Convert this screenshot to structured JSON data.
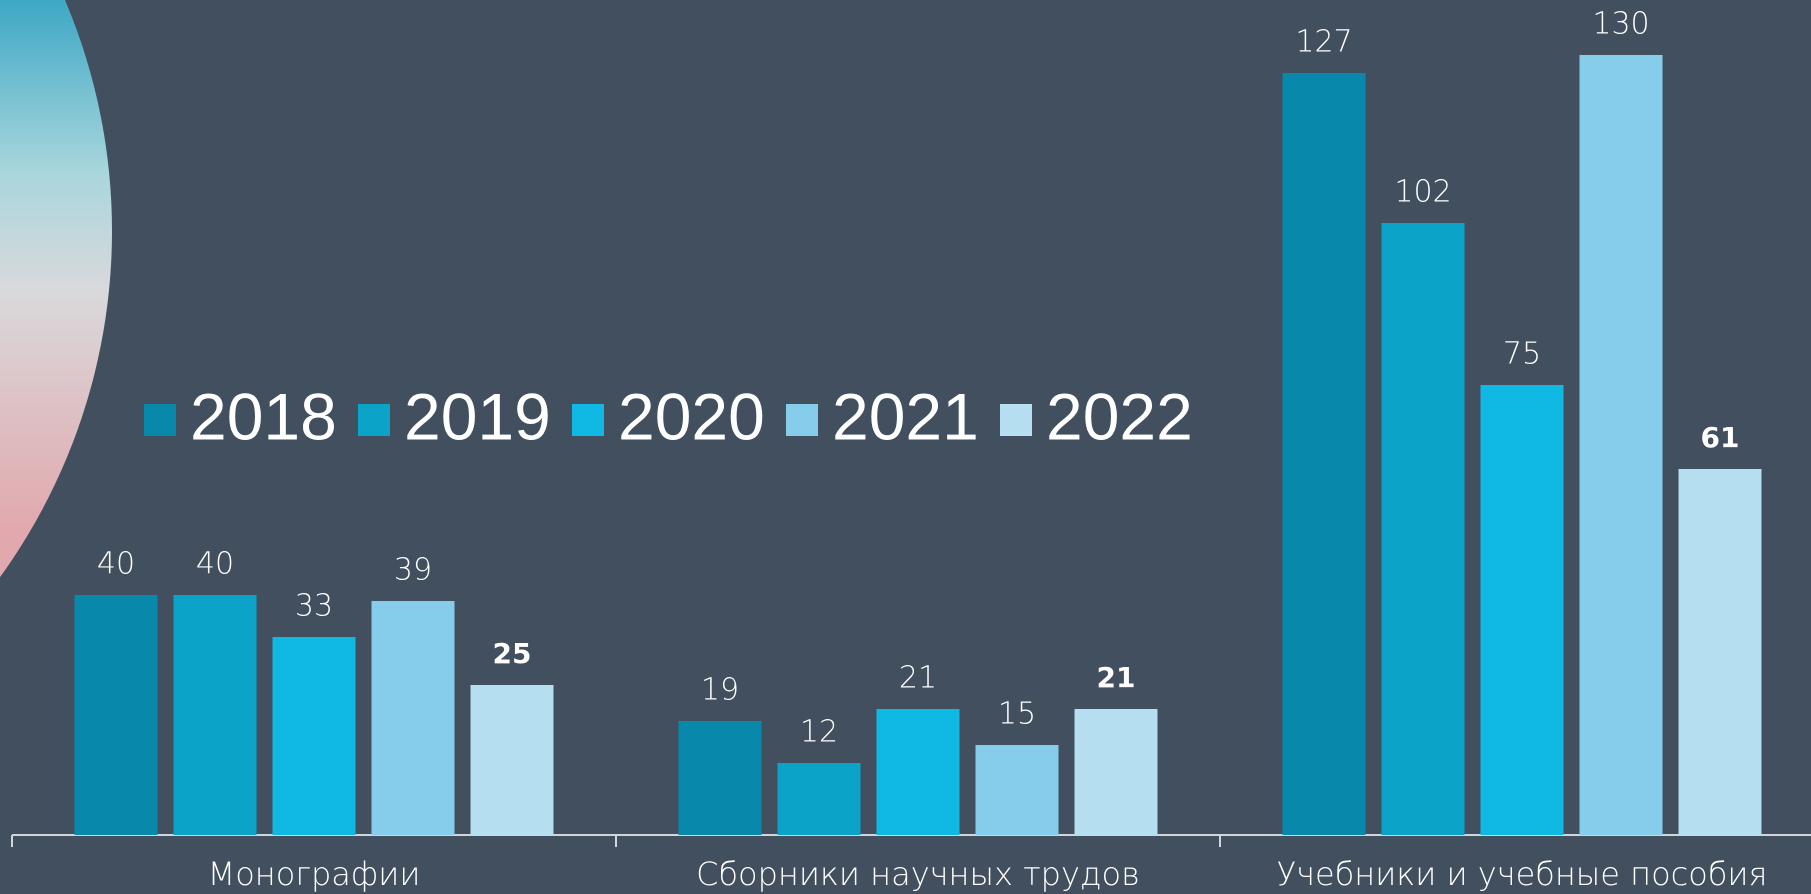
{
  "chart_data": {
    "type": "bar",
    "categories": [
      "Монографии",
      "Сборники научных трудов",
      "Учебники и учебные пособия"
    ],
    "series": [
      {
        "name": "2018",
        "color": "#0889ab",
        "values": [
          40,
          19,
          127
        ]
      },
      {
        "name": "2019",
        "color": "#0ca3c9",
        "values": [
          40,
          12,
          102
        ]
      },
      {
        "name": "2020",
        "color": "#10b9e3",
        "values": [
          33,
          21,
          75
        ]
      },
      {
        "name": "2021",
        "color": "#86cdeb",
        "values": [
          39,
          15,
          130
        ]
      },
      {
        "name": "2022",
        "color": "#b5dff0",
        "values": [
          25,
          21,
          61
        ]
      }
    ]
  }
}
